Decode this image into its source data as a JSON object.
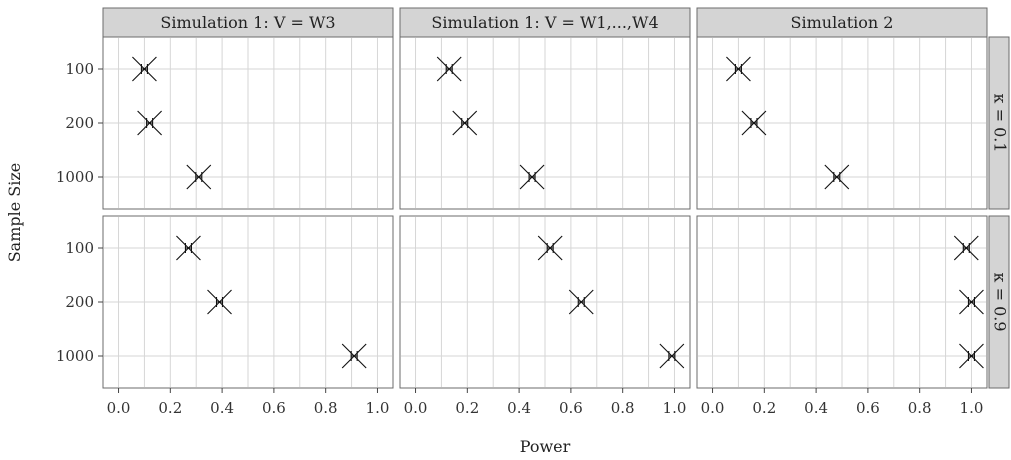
{
  "chart_data": {
    "type": "scatter",
    "xlabel": "Power",
    "ylabel": "Sample Size",
    "xlim": [
      -0.06,
      1.06
    ],
    "x_ticks": [
      "0.0",
      "0.2",
      "0.4",
      "0.6",
      "0.8",
      "1.0"
    ],
    "categories": [
      "100",
      "200",
      "1000"
    ],
    "grid": true,
    "marker": "x-with-errorbar",
    "columns": [
      {
        "label": "Simulation 1: V = W3"
      },
      {
        "label": "Simulation 1: V = W1,...,W4"
      },
      {
        "label": "Simulation 2"
      }
    ],
    "rows": [
      {
        "label": "κ = 0.1"
      },
      {
        "label": "κ = 0.9"
      }
    ],
    "panels": [
      {
        "row": 0,
        "col": 0,
        "points": [
          {
            "category": "100",
            "x": 0.1
          },
          {
            "category": "200",
            "x": 0.12
          },
          {
            "category": "1000",
            "x": 0.31
          }
        ]
      },
      {
        "row": 0,
        "col": 1,
        "points": [
          {
            "category": "100",
            "x": 0.13
          },
          {
            "category": "200",
            "x": 0.19
          },
          {
            "category": "1000",
            "x": 0.45
          }
        ]
      },
      {
        "row": 0,
        "col": 2,
        "points": [
          {
            "category": "100",
            "x": 0.1
          },
          {
            "category": "200",
            "x": 0.16
          },
          {
            "category": "1000",
            "x": 0.48
          }
        ]
      },
      {
        "row": 1,
        "col": 0,
        "points": [
          {
            "category": "100",
            "x": 0.27
          },
          {
            "category": "200",
            "x": 0.39
          },
          {
            "category": "1000",
            "x": 0.91
          }
        ]
      },
      {
        "row": 1,
        "col": 1,
        "points": [
          {
            "category": "100",
            "x": 0.52
          },
          {
            "category": "200",
            "x": 0.64
          },
          {
            "category": "1000",
            "x": 0.99
          }
        ]
      },
      {
        "row": 1,
        "col": 2,
        "points": [
          {
            "category": "100",
            "x": 0.98
          },
          {
            "category": "200",
            "x": 1.0
          },
          {
            "category": "1000",
            "x": 1.0
          }
        ]
      }
    ]
  }
}
